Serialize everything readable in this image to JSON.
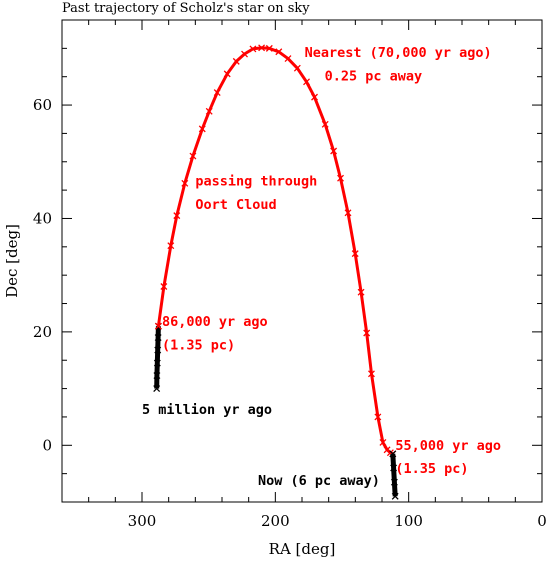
{
  "chart_data": {
    "type": "line",
    "title": "Past trajectory of Scholz's star on sky",
    "xlabel": "RA [deg]",
    "ylabel": "Dec [deg]",
    "xlim": [
      360,
      0
    ],
    "ylim": [
      -10,
      75
    ],
    "x_ticks": [
      300,
      200,
      100,
      0
    ],
    "x_tick_labels": [
      "300",
      "200",
      "100",
      "0"
    ],
    "y_ticks": [
      0,
      20,
      40,
      60
    ],
    "y_tick_labels": [
      "0",
      "20",
      "40",
      "60"
    ],
    "grid": false,
    "colors": {
      "past": "#000000",
      "oort": "#ff0000"
    },
    "series": [
      {
        "segment": "past",
        "color": "#000000",
        "x": [
          289,
          288.8,
          288.5,
          288.2,
          287.9,
          287.7
        ],
        "y": [
          10,
          12.3,
          14.5,
          16.8,
          19.0,
          21.0
        ]
      },
      {
        "segment": "oort",
        "color": "#ff0000",
        "x": [
          287.7,
          283.6,
          278.4,
          273.9,
          267.9,
          261.8,
          254.8,
          249.6,
          243.6,
          236.1,
          229.3,
          223.1,
          216.8,
          210.3,
          204.5,
          197.4,
          190.5,
          183.5,
          176.6,
          170.6,
          162.6,
          156.3,
          151.1,
          145.5,
          140.1,
          135.7,
          131.5,
          127.9,
          123.1,
          119.3,
          116.2,
          113.7,
          111.9
        ],
        "y": [
          21.0,
          28.0,
          35.2,
          40.5,
          46.2,
          51.0,
          55.8,
          58.9,
          62.2,
          65.5,
          67.7,
          69.0,
          69.9,
          70.1,
          70.0,
          69.4,
          68.2,
          66.5,
          64.1,
          61.4,
          56.6,
          51.9,
          47.1,
          41.0,
          33.8,
          27.0,
          19.8,
          12.6,
          5.0,
          0.5,
          -0.8,
          -1.3,
          -1.5
        ]
      },
      {
        "segment": "recent",
        "color": "#000000",
        "x": [
          111.9,
          111.3,
          110.7,
          110.1
        ],
        "y": [
          -1.5,
          -4.0,
          -6.5,
          -9.0
        ]
      }
    ],
    "annotations": [
      {
        "text": "Nearest (70,000 yr ago)",
        "color": "#ff0000",
        "x": 178,
        "y": 68.5
      },
      {
        "text": "0.25 pc away",
        "color": "#ff0000",
        "x": 163,
        "y": 64.3
      },
      {
        "text": "passing through",
        "color": "#ff0000",
        "x": 260,
        "y": 45.8
      },
      {
        "text": "Oort Cloud",
        "color": "#ff0000",
        "x": 260,
        "y": 41.7
      },
      {
        "text": "86,000 yr ago",
        "color": "#ff0000",
        "x": 285,
        "y": 21.0
      },
      {
        "text": "(1.35 pc)",
        "color": "#ff0000",
        "x": 285,
        "y": 16.9
      },
      {
        "text": "5 million yr ago",
        "color": "#000000",
        "x": 300,
        "y": 5.5
      },
      {
        "text": "55,000 yr ago",
        "color": "#ff0000",
        "x": 110,
        "y": -0.8
      },
      {
        "text": "(1.35 pc)",
        "color": "#ff0000",
        "x": 110,
        "y": -4.9
      },
      {
        "text": "Now (6 pc away)",
        "color": "#000000",
        "x": 213,
        "y": -7.0
      }
    ]
  }
}
